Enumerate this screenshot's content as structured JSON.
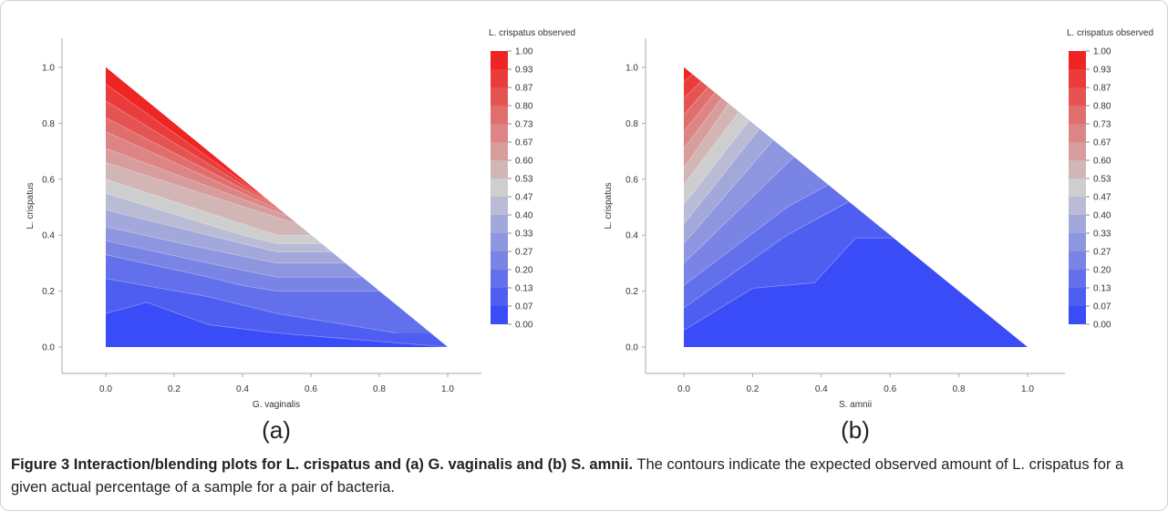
{
  "chart_data": [
    {
      "type": "contour",
      "panel_label": "(a)",
      "xlabel": "G. vaginalis",
      "ylabel": "L. crispatus",
      "xlim": [
        0.0,
        1.0
      ],
      "ylim": [
        0.0,
        1.0
      ],
      "x_ticks": [
        "0.0",
        "0.2",
        "0.4",
        "0.6",
        "0.8",
        "1.0"
      ],
      "y_ticks": [
        "0.0",
        "0.2",
        "0.4",
        "0.6",
        "0.8",
        "1.0"
      ],
      "legend_title": "L. crispatus observed",
      "legend_levels": [
        "1.00",
        "0.93",
        "0.87",
        "0.80",
        "0.73",
        "0.67",
        "0.60",
        "0.53",
        "0.47",
        "0.40",
        "0.33",
        "0.27",
        "0.20",
        "0.13",
        "0.07",
        "0.00"
      ],
      "contour_lines": [
        {
          "level": 0.07,
          "points": [
            [
              0,
              0.12
            ],
            [
              0.12,
              0.16
            ],
            [
              0.3,
              0.08
            ],
            [
              0.5,
              0.05
            ],
            [
              1,
              0
            ]
          ]
        },
        {
          "level": 0.13,
          "points": [
            [
              0,
              0.245
            ],
            [
              0.3,
              0.18
            ],
            [
              0.5,
              0.12
            ],
            [
              0.85,
              0.05
            ]
          ]
        },
        {
          "level": 0.2,
          "points": [
            [
              0,
              0.33
            ],
            [
              0.3,
              0.25
            ],
            [
              0.4,
              0.22
            ],
            [
              0.5,
              0.2
            ],
            [
              0.8,
              0.2
            ]
          ]
        },
        {
          "level": 0.27,
          "points": [
            [
              0,
              0.38
            ],
            [
              0.3,
              0.3
            ],
            [
              0.5,
              0.25
            ],
            [
              0.75,
              0.25
            ]
          ]
        },
        {
          "level": 0.33,
          "points": [
            [
              0,
              0.43
            ],
            [
              0.3,
              0.35
            ],
            [
              0.5,
              0.3
            ],
            [
              0.7,
              0.3
            ]
          ]
        },
        {
          "level": 0.4,
          "points": [
            [
              0,
              0.49
            ],
            [
              0.3,
              0.4
            ],
            [
              0.5,
              0.34
            ],
            [
              0.66,
              0.34
            ]
          ]
        },
        {
          "level": 0.47,
          "points": [
            [
              0,
              0.55
            ],
            [
              0.4,
              0.4
            ],
            [
              0.5,
              0.37
            ],
            [
              0.63,
              0.37
            ]
          ]
        },
        {
          "level": 0.53,
          "points": [
            [
              0,
              0.6
            ],
            [
              0.5,
              0.4
            ],
            [
              0.6,
              0.4
            ]
          ]
        },
        {
          "level": 0.6,
          "points": [
            [
              0,
              0.66
            ],
            [
              0.56,
              0.44
            ]
          ]
        },
        {
          "level": 0.67,
          "points": [
            [
              0,
              0.71
            ],
            [
              0.53,
              0.47
            ]
          ]
        },
        {
          "level": 0.73,
          "points": [
            [
              0,
              0.77
            ],
            [
              0.51,
              0.49
            ]
          ]
        },
        {
          "level": 0.8,
          "points": [
            [
              0,
              0.82
            ],
            [
              0.49,
              0.51
            ]
          ]
        },
        {
          "level": 0.87,
          "points": [
            [
              0,
              0.88
            ],
            [
              0.48,
              0.52
            ]
          ]
        },
        {
          "level": 0.93,
          "points": [
            [
              0,
              0.94
            ],
            [
              0.47,
              0.53
            ]
          ]
        }
      ]
    },
    {
      "type": "contour",
      "panel_label": "(b)",
      "xlabel": "S. amnii",
      "ylabel": "L. crispatus",
      "xlim": [
        0.0,
        1.0
      ],
      "ylim": [
        0.0,
        1.0
      ],
      "x_ticks": [
        "0.0",
        "0.2",
        "0.4",
        "0.6",
        "0.8",
        "1.0"
      ],
      "y_ticks": [
        "0.0",
        "0.2",
        "0.4",
        "0.6",
        "0.8",
        "1.0"
      ],
      "legend_title": "L. crispatus observed",
      "legend_levels": [
        "1.00",
        "0.93",
        "0.87",
        "0.80",
        "0.73",
        "0.67",
        "0.60",
        "0.53",
        "0.47",
        "0.40",
        "0.33",
        "0.27",
        "0.20",
        "0.13",
        "0.07",
        "0.00"
      ],
      "contour_lines": [
        {
          "level": 0.07,
          "points": [
            [
              0,
              0.06
            ],
            [
              0.2,
              0.21
            ],
            [
              0.38,
              0.23
            ],
            [
              0.5,
              0.39
            ],
            [
              0.61,
              0.39
            ]
          ]
        },
        {
          "level": 0.13,
          "points": [
            [
              0,
              0.14
            ],
            [
              0.3,
              0.4
            ],
            [
              0.48,
              0.52
            ]
          ]
        },
        {
          "level": 0.2,
          "points": [
            [
              0,
              0.22
            ],
            [
              0.3,
              0.5
            ],
            [
              0.42,
              0.58
            ]
          ]
        },
        {
          "level": 0.27,
          "points": [
            [
              0,
              0.3
            ],
            [
              0.32,
              0.68
            ]
          ]
        },
        {
          "level": 0.33,
          "points": [
            [
              0,
              0.37
            ],
            [
              0.26,
              0.74
            ]
          ]
        },
        {
          "level": 0.4,
          "points": [
            [
              0,
              0.44
            ],
            [
              0.22,
              0.78
            ]
          ]
        },
        {
          "level": 0.47,
          "points": [
            [
              0,
              0.51
            ],
            [
              0.19,
              0.81
            ]
          ]
        },
        {
          "level": 0.53,
          "points": [
            [
              0,
              0.58
            ],
            [
              0.16,
              0.84
            ]
          ]
        },
        {
          "level": 0.6,
          "points": [
            [
              0,
              0.64
            ],
            [
              0.13,
              0.87
            ]
          ]
        },
        {
          "level": 0.67,
          "points": [
            [
              0,
              0.71
            ],
            [
              0.11,
              0.89
            ]
          ]
        },
        {
          "level": 0.73,
          "points": [
            [
              0,
              0.77
            ],
            [
              0.09,
              0.91
            ]
          ]
        },
        {
          "level": 0.8,
          "points": [
            [
              0,
              0.83
            ],
            [
              0.07,
              0.93
            ]
          ]
        },
        {
          "level": 0.87,
          "points": [
            [
              0,
              0.89
            ],
            [
              0.05,
              0.95
            ]
          ]
        },
        {
          "level": 0.93,
          "points": [
            [
              0,
              0.95
            ],
            [
              0.025,
              0.975
            ]
          ]
        }
      ]
    }
  ],
  "caption": {
    "lead": "Figure 3 Interaction/blending plots for L. crispatus and (a) G. vaginalis and (b) S. amnii.",
    "body": "The contours indicate the expected observed amount of L. crispatus for a given actual percentage of a sample for a pair of bacteria."
  }
}
